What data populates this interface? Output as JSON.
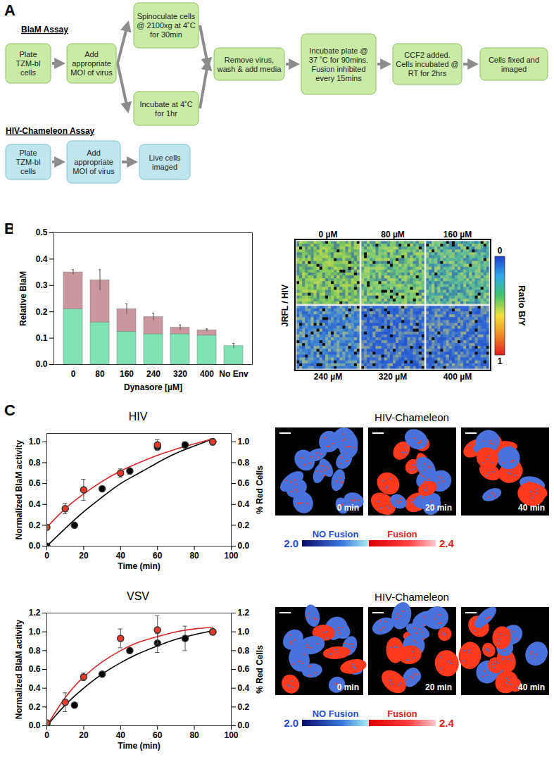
{
  "panel_labels": [
    "A",
    "B",
    "C"
  ],
  "diagram": {
    "blam": {
      "title": "BlaM Assay",
      "steps": [
        "Plate TZM-bl cells",
        "Add appropriate MOI of virus",
        "Spinoculate cells @ 2100xg at 4˚C for 30min",
        "Incubate at 4˚C for 1hr",
        "Remove virus, wash & add media",
        "Incubate plate @ 37 ˚C for 90mins. Fusion inhibited every 15mins",
        "CCF2 added. Cells incubated @ RT for 2hrs",
        "Cells fixed and imaged"
      ]
    },
    "chameleon": {
      "title": "HIV-Chameleon Assay",
      "steps": [
        "Plate TZM-bl cells",
        "Add appropriate MOI of virus",
        "Live cells imaged"
      ]
    }
  },
  "chart_data": [
    {
      "type": "bar",
      "stacked": true,
      "x_label": "Dynasore [µM]",
      "y_label": "Relative BlaM",
      "categories": [
        "0",
        "80",
        "160",
        "240",
        "320",
        "400",
        "No Env"
      ],
      "series": [
        {
          "color": "#7fe3b4",
          "values": [
            0.21,
            0.16,
            0.125,
            0.115,
            0.115,
            0.11,
            0.07
          ]
        },
        {
          "color": "#c9979d",
          "values": [
            0.14,
            0.16,
            0.085,
            0.065,
            0.025,
            0.02,
            0
          ],
          "errors": [
            0.01,
            0.04,
            0.02,
            0.015,
            0.01,
            0.005,
            0.01
          ]
        }
      ],
      "ylim": [
        0,
        0.5
      ],
      "yticks": [
        {
          "value": 0,
          "label": "0.0"
        },
        0.1,
        0.2,
        0.3,
        0.4,
        0.5
      ],
      "grid": false
    },
    {
      "type": "line",
      "title": "HIV",
      "x_label": "Time (min)",
      "y_label": "Normalized BlaM activity",
      "y2_label": "% Red Cells",
      "xlim": [
        0,
        100
      ],
      "xticks": [
        0,
        20,
        40,
        60,
        80,
        100
      ],
      "ylim": [
        0,
        1.08
      ],
      "yticks": [
        {
          "value": 0,
          "label": "0.0"
        },
        0.2,
        0.4,
        0.6,
        0.8,
        {
          "value": 1,
          "label": "1.0"
        }
      ],
      "y2lim": [
        0,
        1.08
      ],
      "y2ticks": [
        {
          "value": 0,
          "label": "0.0"
        },
        0.2,
        0.4,
        0.6,
        0.8,
        {
          "value": 1,
          "label": "1.0"
        }
      ],
      "grid": false,
      "series": [
        {
          "type": "line",
          "color": "#000000",
          "axis": "y",
          "x": [
            0,
            10,
            20,
            30,
            40,
            50,
            60,
            70,
            80,
            90
          ],
          "values": [
            0,
            0.17,
            0.33,
            0.47,
            0.6,
            0.7,
            0.8,
            0.89,
            0.96,
            1.03
          ]
        },
        {
          "type": "line",
          "color": "#d9262a",
          "axis": "y2",
          "x": [
            0,
            10,
            20,
            30,
            40,
            50,
            60,
            70,
            80,
            90
          ],
          "values": [
            0.18,
            0.36,
            0.5,
            0.62,
            0.72,
            0.8,
            0.87,
            0.93,
            0.98,
            1.03
          ]
        },
        {
          "type": "scatter",
          "marker": "circle",
          "color": "#000000",
          "axis": "y",
          "x": [
            0,
            15,
            30,
            45,
            60,
            75,
            90
          ],
          "values": [
            0.0,
            0.2,
            0.55,
            0.72,
            0.95,
            0.97,
            1.0
          ],
          "errors": [
            null,
            null,
            0.02,
            0.03,
            0.02,
            0.03,
            0.03
          ]
        },
        {
          "type": "scatter",
          "marker": "circle",
          "color": "#e83a2a",
          "axis": "y2",
          "x": [
            0,
            10,
            20,
            40,
            60,
            90
          ],
          "values": [
            0.18,
            0.36,
            0.54,
            0.7,
            0.97,
            1.0
          ],
          "errors": [
            null,
            0.05,
            0.1,
            0.04,
            0.05,
            0.03
          ]
        }
      ]
    },
    {
      "type": "line",
      "title": "VSV",
      "x_label": "Time (min)",
      "y_label": "Normalized BlaM activity",
      "y2_label": "% Red Cells",
      "xlim": [
        0,
        100
      ],
      "xticks": [
        0,
        20,
        40,
        60,
        80,
        100
      ],
      "ylim": [
        0,
        1.2
      ],
      "yticks": [
        {
          "value": 0,
          "label": "0.0"
        },
        0.2,
        0.4,
        0.6,
        0.8,
        {
          "value": 1,
          "label": "1.0"
        },
        1.2
      ],
      "y2lim": [
        0,
        1.2
      ],
      "y2ticks": [
        {
          "value": 0,
          "label": "0.0"
        },
        0.2,
        0.4,
        0.6,
        0.8,
        {
          "value": 1,
          "label": "1.0"
        },
        1.2
      ],
      "grid": false,
      "series": [
        {
          "type": "line",
          "color": "#000000",
          "axis": "y",
          "x": [
            0,
            10,
            20,
            30,
            40,
            50,
            60,
            70,
            80,
            90
          ],
          "values": [
            0,
            0.22,
            0.4,
            0.55,
            0.67,
            0.77,
            0.85,
            0.92,
            0.97,
            1.01
          ]
        },
        {
          "type": "line",
          "color": "#d9262a",
          "axis": "y2",
          "x": [
            0,
            10,
            20,
            30,
            40,
            50,
            60,
            70,
            80,
            90
          ],
          "values": [
            0,
            0.3,
            0.52,
            0.68,
            0.8,
            0.89,
            0.95,
            1.0,
            1.03,
            1.05
          ]
        },
        {
          "type": "scatter",
          "marker": "circle",
          "color": "#000000",
          "axis": "y",
          "x": [
            0,
            15,
            30,
            45,
            60,
            75,
            90
          ],
          "values": [
            0.02,
            0.22,
            0.55,
            0.8,
            0.88,
            0.93,
            1.0
          ],
          "errors": [
            null,
            null,
            null,
            null,
            0.1,
            0.13,
            0.03
          ]
        },
        {
          "type": "scatter",
          "marker": "circle",
          "color": "#e83a2a",
          "axis": "y2",
          "x": [
            0,
            10,
            20,
            40,
            60,
            90
          ],
          "values": [
            0.03,
            0.25,
            0.52,
            0.93,
            1.02,
            1.0
          ],
          "errors": [
            0.02,
            0.1,
            0.04,
            0.1,
            0.15,
            0.03
          ]
        }
      ]
    }
  ],
  "plate": {
    "row_label": "JRFL / HIV",
    "wells": [
      {
        "label": "0 µM",
        "color": "#7ac95e"
      },
      {
        "label": "80 µM",
        "color": "#6cc77a"
      },
      {
        "label": "160 µM",
        "color": "#55b99a"
      },
      {
        "label": "240 µM",
        "color": "#3f88d6"
      },
      {
        "label": "320 µM",
        "color": "#2f6ad8"
      },
      {
        "label": "400 µM",
        "color": "#3570d6"
      }
    ],
    "colorbar": {
      "label": "Ratio B/Y",
      "range": [
        0,
        1
      ],
      "ticks": [
        0,
        1
      ]
    }
  },
  "microscopy": [
    {
      "title": "HIV-Chameleon",
      "frames": [
        "0 min",
        "20 min",
        "40 min"
      ],
      "colorbar": {
        "range": [
          2,
          2.4
        ],
        "ticks": [
          {
            "value": 2,
            "label": "2.0"
          },
          2.4
        ],
        "labels": [
          "NO Fusion",
          "Fusion"
        ]
      }
    },
    {
      "title": "HIV-Chameleon",
      "frames": [
        "0 min",
        "20 min",
        "40 min"
      ],
      "colorbar": {
        "range": [
          2,
          2.4
        ],
        "ticks": [
          {
            "value": 2,
            "label": "2.0"
          },
          2.4
        ],
        "labels": [
          "NO Fusion",
          "Fusion"
        ]
      }
    }
  ]
}
